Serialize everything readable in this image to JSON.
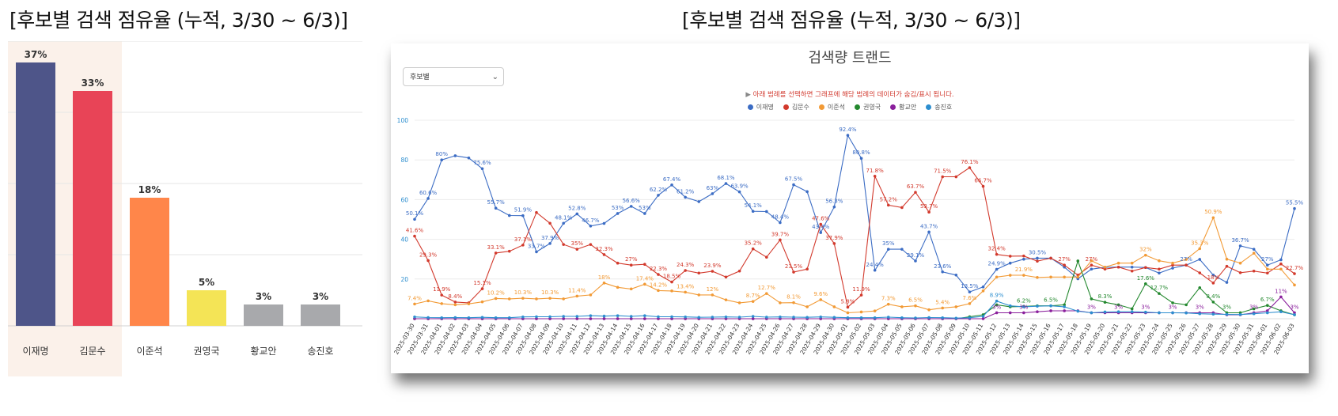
{
  "left_title": "[후보별 검색 점유율 (누적, 3/30 ~ 6/3)]",
  "right_title": "[후보별 검색 점유율 (누적, 3/30 ~ 6/3)]",
  "right_card": {
    "title": "검색량 트랜드",
    "select_value": "후보별",
    "hint": "아래 범례를 선택하면 그래프에 해당 범례의 데이터가 숨김/표시 됩니다."
  },
  "colors": {
    "이재명": "#3b6cc4",
    "김문수": "#d2392c",
    "이준석": "#f29a35",
    "권영국": "#23882e",
    "황교안": "#8a1f9c",
    "송진호": "#2c8ecf"
  },
  "chart_data": [
    {
      "type": "bar",
      "categories": [
        "이재명",
        "김문수",
        "이준석",
        "권영국",
        "황교안",
        "송진호"
      ],
      "values": [
        37,
        33,
        18,
        5,
        3,
        3
      ],
      "value_labels": [
        "37%",
        "33%",
        "18%",
        "5%",
        "3%",
        "3%"
      ],
      "bar_colors": [
        "#4e5589",
        "#e84457",
        "#ff864a",
        "#f4e456",
        "#a8a9ac",
        "#a8a9ac"
      ],
      "highlight_categories": [
        "이재명",
        "김문수"
      ],
      "ylim": [
        0,
        40
      ],
      "grid": true
    },
    {
      "type": "line",
      "title": "검색량 트랜드",
      "ylim": [
        0,
        100
      ],
      "yticks": [
        20,
        40,
        60,
        80,
        100
      ],
      "legend_position": "top-center",
      "x": [
        "2025-03-30",
        "2025-03-31",
        "2025-04-01",
        "2025-04-02",
        "2025-04-03",
        "2025-04-04",
        "2025-04-05",
        "2025-04-06",
        "2025-04-07",
        "2025-04-08",
        "2025-04-09",
        "2025-04-10",
        "2025-04-11",
        "2025-04-12",
        "2025-04-13",
        "2025-04-14",
        "2025-04-15",
        "2025-04-16",
        "2025-04-17",
        "2025-04-18",
        "2025-04-19",
        "2025-04-20",
        "2025-04-21",
        "2025-04-22",
        "2025-04-23",
        "2025-04-24",
        "2025-04-25",
        "2025-04-26",
        "2025-04-27",
        "2025-04-28",
        "2025-04-29",
        "2025-04-30",
        "2025-05-01",
        "2025-05-02",
        "2025-05-03",
        "2025-05-04",
        "2025-05-05",
        "2025-05-06",
        "2025-05-07",
        "2025-05-08",
        "2025-05-09",
        "2025-05-10",
        "2025-05-11",
        "2025-05-12",
        "2025-05-13",
        "2025-05-14",
        "2025-05-15",
        "2025-05-16",
        "2025-05-17",
        "2025-05-18",
        "2025-05-19",
        "2025-05-20",
        "2025-05-21",
        "2025-05-22",
        "2025-05-23",
        "2025-05-24",
        "2025-05-25",
        "2025-05-26",
        "2025-05-27",
        "2025-05-28",
        "2025-05-29",
        "2025-05-30",
        "2025-05-31",
        "2025-06-01",
        "2025-06-02",
        "2025-06-03"
      ],
      "series": [
        {
          "name": "이재명",
          "values": [
            50.1,
            60.6,
            80,
            82.1,
            81,
            75.6,
            55.7,
            52,
            51.9,
            33.7,
            37.9,
            48.1,
            52.8,
            46.7,
            48,
            53,
            56.6,
            53,
            62.2,
            67.4,
            61.2,
            59,
            63,
            68.1,
            63.9,
            54.1,
            54,
            48.4,
            67.5,
            64,
            43.4,
            56.3,
            92.4,
            80.8,
            24.4,
            35,
            35,
            29.1,
            43.7,
            23.6,
            22,
            13.5,
            16,
            24.9,
            28,
            30,
            30.5,
            30.5,
            26,
            20.1,
            25,
            25.9,
            26,
            26,
            25.8,
            23,
            25.5,
            27,
            29.9,
            22,
            18.3,
            36.7,
            35,
            27,
            29.7,
            55.5
          ]
        },
        {
          "name": "김문수",
          "values": [
            41.6,
            29.3,
            11.9,
            8.4,
            8,
            15.1,
            33.1,
            34,
            37.1,
            53.5,
            48.1,
            37.4,
            35,
            37.4,
            32.3,
            28,
            27,
            27.4,
            22.3,
            18.5,
            24.3,
            23,
            23.9,
            21,
            24,
            35.2,
            31,
            39.7,
            23.5,
            25,
            47.6,
            37.9,
            5.8,
            11.9,
            71.8,
            57.2,
            56,
            63.7,
            53.7,
            71.5,
            71.5,
            76.1,
            66.7,
            32.4,
            31.5,
            31.6,
            29,
            30.5,
            27,
            22,
            27,
            25,
            26,
            24,
            25.8,
            25,
            27,
            27,
            23.1,
            18,
            26.4,
            23.2,
            24,
            23,
            27.6,
            22.7
          ]
        },
        {
          "name": "이준석",
          "values": [
            7.4,
            9,
            7.6,
            7,
            7.5,
            8.5,
            10.2,
            10,
            10.3,
            10,
            10.3,
            10,
            11.4,
            12,
            18,
            15.8,
            15,
            17.4,
            14.2,
            14,
            13.4,
            12,
            12,
            9.5,
            8,
            8.7,
            12.7,
            8,
            8.1,
            6,
            9.6,
            6,
            3,
            3.4,
            3.9,
            7.3,
            6,
            6.5,
            4.5,
            5.4,
            6,
            7.6,
            14,
            21,
            21.9,
            21.9,
            20.8,
            21,
            21,
            21,
            29.2,
            26,
            28,
            28,
            32,
            29.2,
            28,
            29.9,
            35.3,
            50.9,
            30,
            28,
            33,
            25,
            25,
            17
          ]
        },
        {
          "name": "권영국",
          "values": [
            0,
            0,
            0,
            0,
            0,
            0,
            0,
            0,
            0,
            0,
            0,
            0,
            0,
            0,
            0,
            0,
            0,
            0,
            0,
            0,
            0,
            0,
            0,
            0,
            0,
            0,
            0,
            0,
            0,
            0,
            0,
            0,
            0,
            0,
            0,
            0,
            0,
            0,
            0,
            0,
            0,
            1,
            2,
            7,
            6,
            6.2,
            6.5,
            6.5,
            7,
            29.1,
            10,
            8.3,
            7,
            5,
            17.6,
            12.7,
            8,
            7,
            15.6,
            8.4,
            3,
            3,
            5,
            6.7,
            4,
            2
          ]
        },
        {
          "name": "황교안",
          "values": [
            0,
            0,
            0,
            0,
            0,
            0,
            0,
            0,
            0,
            0,
            0,
            0,
            0,
            0,
            0,
            0,
            0,
            0,
            0,
            0,
            0,
            0,
            0,
            0,
            0,
            0,
            0,
            0,
            0,
            0,
            0,
            0,
            0,
            0,
            0,
            0,
            0,
            0,
            0,
            0,
            0,
            0,
            0,
            3,
            3,
            3,
            3.5,
            4,
            4,
            4,
            3,
            3,
            3,
            3,
            3,
            3,
            3,
            3,
            3,
            3,
            2,
            2,
            3,
            4,
            11,
            3
          ]
        },
        {
          "name": "송진호",
          "values": [
            0.9,
            0.6,
            0.5,
            0.6,
            0.5,
            0.7,
            0.5,
            0.5,
            0.9,
            1,
            1,
            1.2,
            1.2,
            1.5,
            1.3,
            1.5,
            1.2,
            1.5,
            1,
            1,
            0.9,
            0.7,
            0.8,
            0.9,
            0.8,
            1.2,
            0.8,
            0.9,
            0.8,
            0.7,
            0.9,
            0.7,
            0.5,
            0.5,
            0.5,
            0.8,
            0.5,
            0.4,
            0.6,
            0.5,
            0.3,
            0.5,
            1.2,
            8.9,
            6.5,
            6,
            6.3,
            6.5,
            6,
            3.8,
            3,
            3.4,
            3.5,
            3.5,
            3.3,
            3,
            3,
            2.9,
            2.5,
            2.3,
            2.2,
            2.1,
            2.5,
            3,
            3.5,
            2
          ]
        }
      ],
      "annotations": [
        "50.1%",
        "60.6%",
        "80%",
        "82.1%",
        "75.6%",
        "55.7%",
        "51.9%",
        "33.7%",
        "37.9%",
        "48.1%",
        "52.8%",
        "46.7%",
        "53%",
        "56.6%",
        "62.2%",
        "67.4%",
        "61.2%",
        "63%",
        "68.1%",
        "63.9%",
        "54.1%",
        "48.4%",
        "67.5%",
        "43.4%",
        "56.3%",
        "92.4%",
        "80.8%",
        "24.4%",
        "35%",
        "35%",
        "29.1%",
        "43.7%",
        "23.6%",
        "13.5%",
        "24.9%",
        "36.7%",
        "55.5%",
        "41.6%",
        "29.3%",
        "11.9%",
        "8.4%",
        "15.1%",
        "33.1%",
        "37.1%",
        "53.5%",
        "48.1%",
        "37.4%",
        "32.3%",
        "27%",
        "27.4%",
        "22.3%",
        "18.5%",
        "24.3%",
        "23.9%",
        "35.2%",
        "39.7%",
        "23.5%",
        "47.6%",
        "37.9%",
        "5.8%",
        "71.8%",
        "57.2%",
        "63.7%",
        "53.7%",
        "71.5%",
        "76.1%",
        "66.7%",
        "32.4%",
        "31.6%",
        "30.5%",
        "29.2%",
        "32%",
        "29.9%",
        "35.3%",
        "50.9%",
        "27.6%",
        "22.7%",
        "7.4%",
        "10.2%",
        "10.3%",
        "11.4%",
        "18%",
        "15.8%",
        "17.4%",
        "14.2%",
        "13.4%",
        "12%",
        "9.5%",
        "8.7%",
        "12.7%",
        "8.1%",
        "9.6%",
        "7.3%",
        "6.5%",
        "5.4%",
        "7.6%",
        "21.9%",
        "20.8%",
        "29.1%",
        "17.6%",
        "12.7%",
        "15.6%",
        "8.4%",
        "6.7%",
        "11%",
        "8.9%",
        "8.3%",
        "6.2%",
        "6.3%",
        "3.8%",
        "2.3%",
        "3%"
      ]
    }
  ]
}
